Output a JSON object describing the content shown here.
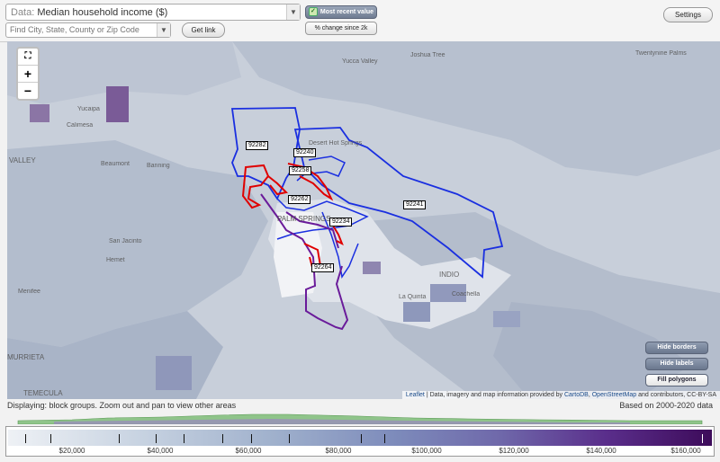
{
  "top": {
    "data_label": "Data:",
    "data_value": "Median household income ($)",
    "search_placeholder": "Find City, State, County or Zip Code",
    "get_link": "Get link",
    "most_recent": "Most recent value",
    "pct_change": "% change since 2k",
    "settings": "Settings"
  },
  "map": {
    "zoom_fit_icon": "fullscreen-icon",
    "zoom_in": "+",
    "zoom_out": "−",
    "zip_labels": [
      "92282",
      "92240",
      "92258",
      "92262",
      "92241",
      "92234",
      "92264"
    ],
    "places": {
      "yucca_valley": "Yucca Valley",
      "joshua_tree": "Joshua Tree",
      "twentynine_palms": "Twentynine Palms",
      "yucaipa": "Yucaipa",
      "calimesa": "Calimesa",
      "desert_hot_springs": "Desert Hot Springs",
      "beaumont": "Beaumont",
      "banning": "Banning",
      "valley": "VALLEY",
      "palm_springs": "PALM SPRINGS",
      "san_jacinto": "San Jacinto",
      "hemet": "Hemet",
      "indio": "INDIO",
      "la_quinta": "La Quinta",
      "coachella": "Coachella",
      "menifee": "Menifee",
      "murrieta": "MURRIETA",
      "temecula": "TEMECULA"
    },
    "hide_borders": "Hide borders",
    "hide_labels": "Hide labels",
    "fill_polygons": "Fill polygons",
    "attribution_leaflet": "Leaflet",
    "attribution_text": " | Data, imagery and map information provided by ",
    "attribution_cartodb": "CartoDB",
    "attribution_mid": ", ",
    "attribution_osm": "OpenStreetMap",
    "attribution_end": " and contributors, CC-BY-SA"
  },
  "status": {
    "displaying": "Displaying: block groups. Zoom out and pan to view other areas",
    "based_on": "Based on 2000-2020 data"
  },
  "legend": {
    "labels": [
      "$20,000",
      "$40,000",
      "$60,000",
      "$80,000",
      "$100,000",
      "$120,000",
      "$140,000",
      "$160,000"
    ],
    "colors": {
      "low": "#eef1f5",
      "mid": "#7d8bbb",
      "high": "#3d0b5a"
    }
  }
}
